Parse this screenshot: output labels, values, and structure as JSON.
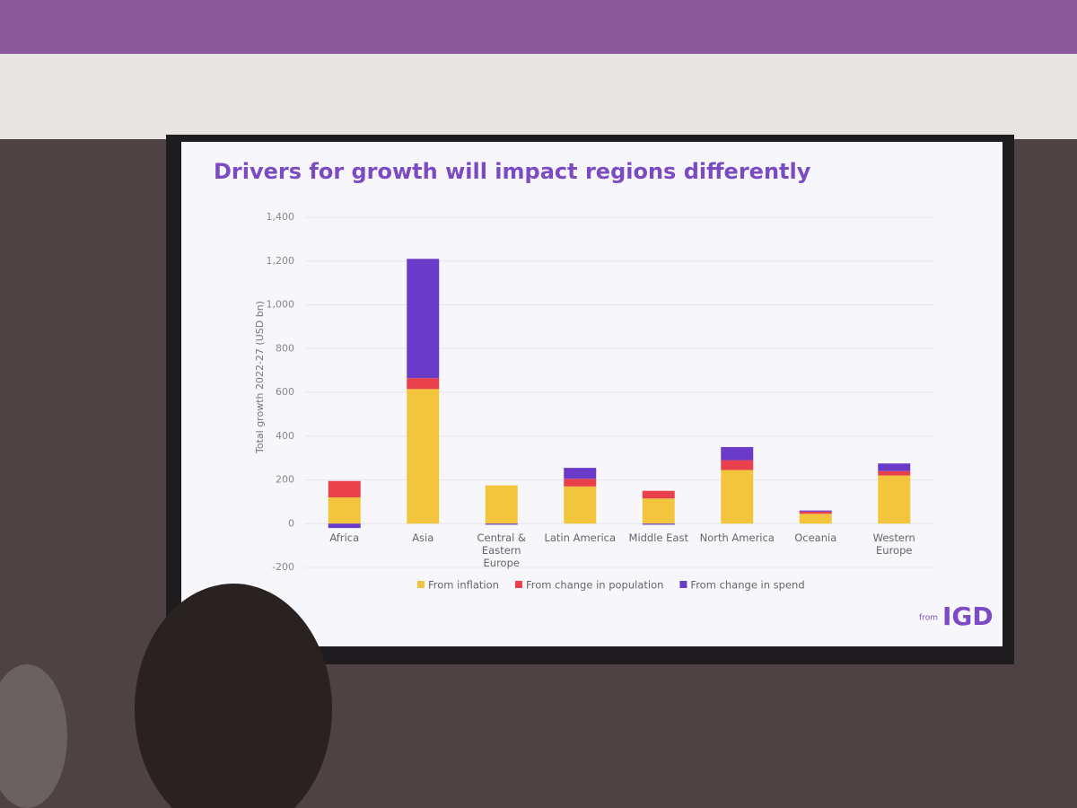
{
  "chart_data": {
    "type": "stacked_bar",
    "title": "Drivers for growth will impact regions differently",
    "y_label": "Total growth 2022-27 (USD bn)",
    "categories": [
      "Africa",
      "Asia",
      "Central & Eastern Europe",
      "Latin America",
      "Middle East",
      "North America",
      "Oceania",
      "Western Europe"
    ],
    "series": [
      {
        "name": "From inflation",
        "color": "#f2c53d",
        "values": [
          120,
          615,
          175,
          170,
          115,
          245,
          45,
          220
        ]
      },
      {
        "name": "From change in population",
        "color": "#e8414b",
        "values": [
          75,
          50,
          0,
          35,
          35,
          45,
          10,
          20
        ]
      },
      {
        "name": "From change in spend",
        "color": "#6a3bc9",
        "values": [
          -20,
          545,
          -5,
          50,
          -5,
          60,
          5,
          35
        ]
      }
    ],
    "ylim": [
      -200,
      1400
    ],
    "yticks": [
      -200,
      0,
      200,
      400,
      600,
      800,
      {
        "value": 1000,
        "label": "1,000"
      },
      {
        "value": 1200,
        "label": "1,200"
      },
      {
        "value": 1400,
        "label": "1,400"
      }
    ],
    "grid": true,
    "legend": "bottom",
    "logo_prefix": "from",
    "logo": "IGD"
  }
}
